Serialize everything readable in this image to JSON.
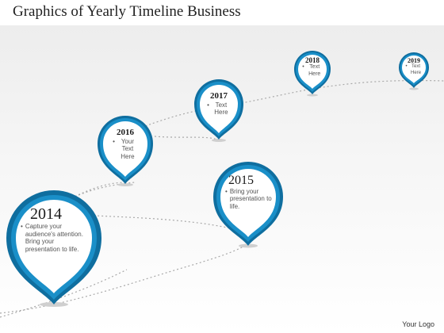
{
  "title": "Graphics of Yearly Timeline Business",
  "footer": {
    "logo_text": "Your Logo"
  },
  "colors": {
    "pin": "#1a8fc8",
    "pin_dark": "#0f6e9f",
    "dotted_line": "#a9a9a9"
  },
  "milestones": [
    {
      "year": "2014",
      "text": "Capture your audience's attention. Bring your presentation to life."
    },
    {
      "year": "2015",
      "text": "Bring your presentation to life."
    },
    {
      "year": "2016",
      "text": "Your Text Here"
    },
    {
      "year": "2017",
      "text": "Text Here"
    },
    {
      "year": "2018",
      "text": "Text Here"
    },
    {
      "year": "2019",
      "text": "Text Here"
    }
  ]
}
